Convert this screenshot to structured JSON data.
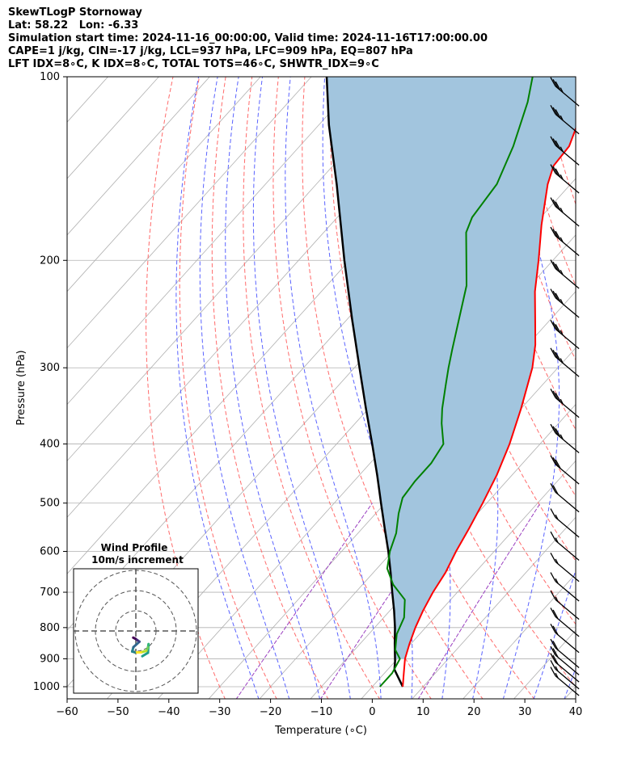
{
  "header": {
    "title": "SkewTLogP Stornoway",
    "location": "Lat: 58.22   Lon: -6.33",
    "times": "Simulation start time: 2024-11-16_00:00:00, Valid time: 2024-11-16T17:00:00.00",
    "indices1": "CAPE=1 j/kg, CIN=-17 j/kg, LCL=937 hPa, LFC=909 hPa, EQ=807 hPa",
    "indices2": "LFT IDX=8∘C, K IDX=8∘C, TOTAL TOTS=46∘C, SHWTR_IDX=9∘C"
  },
  "chart_data": {
    "type": "line",
    "xlabel": "Temperature (∘C)",
    "ylabel": "Pressure (hPa)",
    "xlim": [
      -60,
      40
    ],
    "ylim": [
      1050,
      100
    ],
    "y_scale": "log",
    "grid": true,
    "skew": "skew-T log-P",
    "xticks": [
      "−60",
      "−50",
      "−40",
      "−30",
      "−20",
      "−10",
      "0",
      "10",
      "20",
      "30",
      "40"
    ],
    "xtick_values": [
      -60,
      -50,
      -40,
      -30,
      -20,
      -10,
      0,
      10,
      20,
      30,
      40
    ],
    "yticks": [
      "100",
      "200",
      "300",
      "400",
      "500",
      "600",
      "700",
      "800",
      "900",
      "1000"
    ],
    "ytick_values": [
      100,
      200,
      300,
      400,
      500,
      600,
      700,
      800,
      900,
      1000
    ],
    "colors": {
      "temperature": "#ff0000",
      "dewpoint": "#008000",
      "parcel": "#000000",
      "cape_fill": "#a2c5de",
      "dry_adiabat": "#ff6b6b",
      "moist_adiabat": "#5a63ff",
      "mixing_ratio": "#9a3fc0",
      "isotherm": "#b0b0b0"
    },
    "series": [
      {
        "key": "temperature",
        "points": [
          [
            1000,
            6.0
          ],
          [
            950,
            3.8
          ],
          [
            900,
            1.5
          ],
          [
            850,
            -0.3
          ],
          [
            800,
            -2.0
          ],
          [
            750,
            -3.5
          ],
          [
            700,
            -4.8
          ],
          [
            650,
            -5.8
          ],
          [
            600,
            -7.5
          ],
          [
            550,
            -9.0
          ],
          [
            500,
            -10.8
          ],
          [
            450,
            -13.0
          ],
          [
            400,
            -16.0
          ],
          [
            350,
            -20.0
          ],
          [
            300,
            -25.0
          ],
          [
            275,
            -28.5
          ],
          [
            250,
            -33.0
          ],
          [
            225,
            -38.0
          ],
          [
            200,
            -42.8
          ],
          [
            175,
            -48.5
          ],
          [
            150,
            -54.5
          ],
          [
            140,
            -56.6
          ],
          [
            130,
            -57.0
          ],
          [
            120,
            -59.2
          ],
          [
            110,
            -62.5
          ],
          [
            100,
            -66.0
          ]
        ]
      },
      {
        "key": "dewpoint",
        "points": [
          [
            1000,
            1.5
          ],
          [
            950,
            1.5
          ],
          [
            900,
            0.5
          ],
          [
            870,
            -2.0
          ],
          [
            820,
            -4.5
          ],
          [
            770,
            -6.0
          ],
          [
            720,
            -9.0
          ],
          [
            680,
            -14.0
          ],
          [
            640,
            -18.0
          ],
          [
            600,
            -20.5
          ],
          [
            560,
            -22.5
          ],
          [
            520,
            -25.5
          ],
          [
            490,
            -27.5
          ],
          [
            460,
            -28.0
          ],
          [
            430,
            -28.0
          ],
          [
            400,
            -29.0
          ],
          [
            370,
            -33.0
          ],
          [
            350,
            -35.5
          ],
          [
            320,
            -39.0
          ],
          [
            300,
            -41.5
          ],
          [
            280,
            -44.0
          ],
          [
            250,
            -48.0
          ],
          [
            220,
            -52.5
          ],
          [
            200,
            -57.0
          ],
          [
            180,
            -62.0
          ],
          [
            170,
            -63.5
          ],
          [
            150,
            -64.5
          ],
          [
            130,
            -68.0
          ],
          [
            110,
            -73.0
          ],
          [
            100,
            -76.5
          ]
        ]
      },
      {
        "key": "parcel",
        "points": [
          [
            1000,
            6.0
          ],
          [
            937,
            1.3
          ],
          [
            909,
            0.0
          ],
          [
            850,
            -3.2
          ],
          [
            800,
            -6.0
          ],
          [
            750,
            -9.2
          ],
          [
            700,
            -12.8
          ],
          [
            650,
            -16.6
          ],
          [
            600,
            -20.8
          ],
          [
            550,
            -25.6
          ],
          [
            500,
            -30.8
          ],
          [
            450,
            -36.5
          ],
          [
            400,
            -43.0
          ],
          [
            350,
            -50.5
          ],
          [
            300,
            -59.0
          ],
          [
            250,
            -69.0
          ],
          [
            200,
            -81.0
          ],
          [
            150,
            -96.0
          ],
          [
            120,
            -108.0
          ],
          [
            100,
            -117.0
          ]
        ]
      }
    ],
    "wind_barbs": [
      {
        "p": 1000,
        "speed_kt": 15,
        "dir_deg": 305
      },
      {
        "p": 975,
        "speed_kt": 15,
        "dir_deg": 300
      },
      {
        "p": 950,
        "speed_kt": 20,
        "dir_deg": 300
      },
      {
        "p": 925,
        "speed_kt": 20,
        "dir_deg": 300
      },
      {
        "p": 900,
        "speed_kt": 20,
        "dir_deg": 300
      },
      {
        "p": 850,
        "speed_kt": 20,
        "dir_deg": 300
      },
      {
        "p": 800,
        "speed_kt": 20,
        "dir_deg": 300
      },
      {
        "p": 750,
        "speed_kt": 15,
        "dir_deg": 300
      },
      {
        "p": 700,
        "speed_kt": 15,
        "dir_deg": 300
      },
      {
        "p": 650,
        "speed_kt": 15,
        "dir_deg": 300
      },
      {
        "p": 600,
        "speed_kt": 15,
        "dir_deg": 300
      },
      {
        "p": 550,
        "speed_kt": 15,
        "dir_deg": 300
      },
      {
        "p": 500,
        "speed_kt": 20,
        "dir_deg": 300
      },
      {
        "p": 450,
        "speed_kt": 30,
        "dir_deg": 300
      },
      {
        "p": 400,
        "speed_kt": 35,
        "dir_deg": 300
      },
      {
        "p": 350,
        "speed_kt": 35,
        "dir_deg": 300
      },
      {
        "p": 300,
        "speed_kt": 35,
        "dir_deg": 300
      },
      {
        "p": 270,
        "speed_kt": 35,
        "dir_deg": 300
      },
      {
        "p": 240,
        "speed_kt": 35,
        "dir_deg": 300
      },
      {
        "p": 215,
        "speed_kt": 35,
        "dir_deg": 300
      },
      {
        "p": 190,
        "speed_kt": 35,
        "dir_deg": 300
      },
      {
        "p": 170,
        "speed_kt": 35,
        "dir_deg": 300
      },
      {
        "p": 150,
        "speed_kt": 35,
        "dir_deg": 300
      },
      {
        "p": 135,
        "speed_kt": 35,
        "dir_deg": 300
      },
      {
        "p": 120,
        "speed_kt": 35,
        "dir_deg": 300
      },
      {
        "p": 108,
        "speed_kt": 35,
        "dir_deg": 300
      }
    ],
    "hodograph": {
      "title_line1": "Wind Profile",
      "title_line2": "10m/s increment",
      "ring_step_ms": 10,
      "rings": 3,
      "points_uv": [
        [
          3.2,
          -12.5
        ],
        [
          6.0,
          -10.8
        ],
        [
          6.3,
          -6.5
        ],
        [
          6.0,
          -8.2
        ],
        [
          5.2,
          -9.8
        ],
        [
          2.5,
          -10.6
        ],
        [
          -0.5,
          -10.6
        ],
        [
          -1.8,
          -10.2
        ],
        [
          -1.2,
          -8.0
        ],
        [
          1.8,
          -5.3
        ],
        [
          0.8,
          -4.6
        ],
        [
          -0.3,
          -3.8
        ],
        [
          -1.3,
          -3.3
        ]
      ],
      "colormap": [
        "#1f9e89",
        "#35b779",
        "#6ece58",
        "#b5de2b",
        "#fde725",
        "#26828e",
        "#31688e",
        "#3e4989",
        "#482878",
        "#440154"
      ]
    }
  }
}
